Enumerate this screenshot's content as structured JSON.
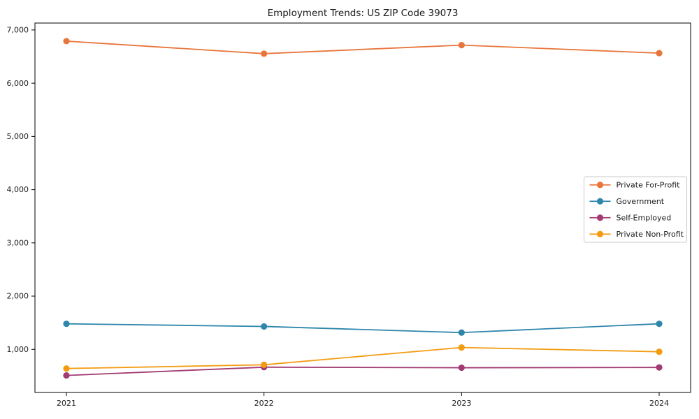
{
  "title": "Employment Trends: US ZIP Code 39073",
  "chart_data": {
    "type": "line",
    "title": "Employment Trends: US ZIP Code 39073",
    "x": [
      "2021",
      "2022",
      "2023",
      "2024"
    ],
    "series": [
      {
        "name": "Private For-Profit",
        "color": "#E8763C",
        "values": [
          6790,
          6555,
          6715,
          6565
        ]
      },
      {
        "name": "Government",
        "color": "#2E86AB",
        "values": [
          1480,
          1430,
          1315,
          1480
        ]
      },
      {
        "name": "Self-Employed",
        "color": "#A23B72",
        "values": [
          510,
          665,
          655,
          660
        ]
      },
      {
        "name": "Private Non-Profit",
        "color": "#F39C12",
        "values": [
          640,
          710,
          1035,
          955
        ]
      }
    ],
    "xlabel": "",
    "ylabel": "",
    "ylim": [
      190,
      7130
    ],
    "yticks": [
      1000,
      2000,
      3000,
      4000,
      5000,
      6000,
      7000
    ],
    "ytick_labels": [
      "1,000",
      "2,000",
      "3,000",
      "4,000",
      "5,000",
      "6,000",
      "7,000"
    ],
    "grid": false,
    "marker": "o",
    "legend_position": "center-right",
    "axis_color": "#000000",
    "background_color": "#ffffff",
    "legend_border_color": "#c9c9c9"
  }
}
